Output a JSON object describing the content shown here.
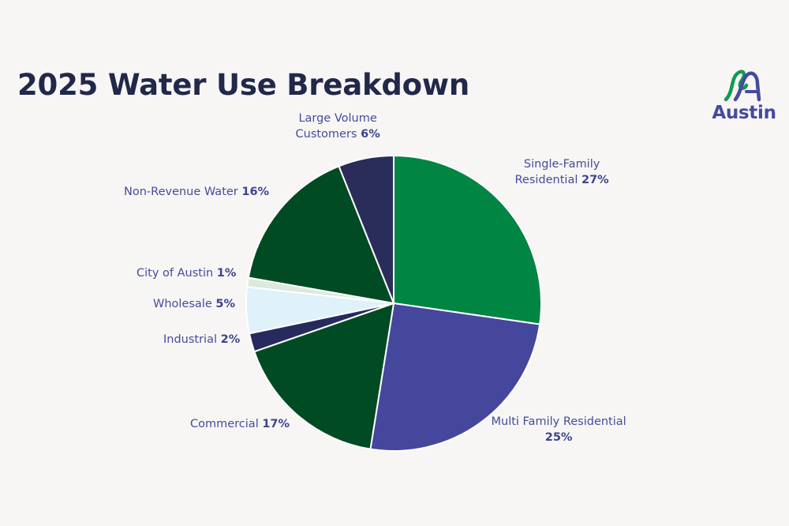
{
  "title": "2025 Water Use Breakdown",
  "logo": {
    "text": "Austin",
    "icon": "austin-water-logo-icon",
    "colors": {
      "green": "#0f9a55",
      "blue": "#454a9e"
    }
  },
  "chart_data": {
    "type": "pie",
    "title": "2025 Water Use Breakdown",
    "unit": "%",
    "slices": [
      {
        "label": "Single-Family Residential",
        "line1": "Single-Family",
        "line2": "Residential",
        "value": 27,
        "pct_label": "27%",
        "color": "#008542"
      },
      {
        "label": "Multi Family Residential",
        "line1": "Multi Family Residential",
        "line2": "",
        "value": 25,
        "pct_label": "25%",
        "color": "#44479c"
      },
      {
        "label": "Commercial",
        "line1": "Commercial",
        "line2": "",
        "value": 17,
        "pct_label": "17%",
        "color": "#004b23"
      },
      {
        "label": "Industrial",
        "line1": "Industrial",
        "line2": "",
        "value": 2,
        "pct_label": "2%",
        "color": "#272a5c"
      },
      {
        "label": "Wholesale",
        "line1": "Wholesale",
        "line2": "",
        "value": 5,
        "pct_label": "5%",
        "color": "#dff1fb"
      },
      {
        "label": "City of Austin",
        "line1": "City of Austin",
        "line2": "",
        "value": 1,
        "pct_label": "1%",
        "color": "#dbeadc"
      },
      {
        "label": "Non-Revenue Water",
        "line1": "Non-Revenue Water",
        "line2": "",
        "value": 16,
        "pct_label": "16%",
        "color": "#004b23"
      },
      {
        "label": "Large Volume Customers",
        "line1": "Large Volume",
        "line2": "Customers",
        "value": 6,
        "pct_label": "6%",
        "color": "#2a2c5a"
      }
    ],
    "legend": "none",
    "labels": "outside"
  }
}
